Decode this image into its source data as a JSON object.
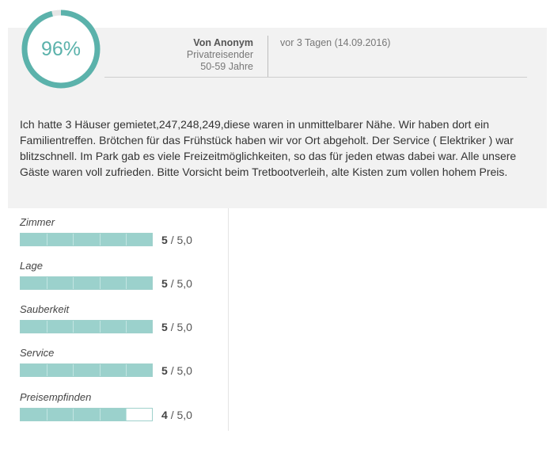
{
  "score": {
    "percent": 96,
    "label": "96%",
    "color": "#5bb2ab"
  },
  "author": {
    "name": "Von Anonym",
    "type": "Privatreisender",
    "age": "50-59 Jahre"
  },
  "date": "vor 3 Tagen (14.09.2016)",
  "review_text": "Ich hatte 3 Häuser gemietet,247,248,249,diese waren in unmittelbarer Nähe. Wir haben dort ein Familientreffen. Brötchen für das Frühstück haben wir vor Ort abgeholt. Der Service ( Elektriker ) war blitzschnell. Im Park gab es viele Freizeitmöglichkeiten, so das für jeden etwas dabei war. Alle unsere Gäste waren voll zufrieden. Bitte Vorsicht beim Tretbootverleih, alte Kisten zum vollen hohem Preis.",
  "ratings": [
    {
      "label": "Zimmer",
      "score": "5",
      "max": "/ 5,0",
      "value": 5
    },
    {
      "label": "Lage",
      "score": "5",
      "max": "/ 5,0",
      "value": 5
    },
    {
      "label": "Sauberkeit",
      "score": "5",
      "max": "/ 5,0",
      "value": 5
    },
    {
      "label": "Service",
      "score": "5",
      "max": "/ 5,0",
      "value": 5
    },
    {
      "label": "Preisempfinden",
      "score": "4",
      "max": "/ 5,0",
      "value": 4
    }
  ]
}
